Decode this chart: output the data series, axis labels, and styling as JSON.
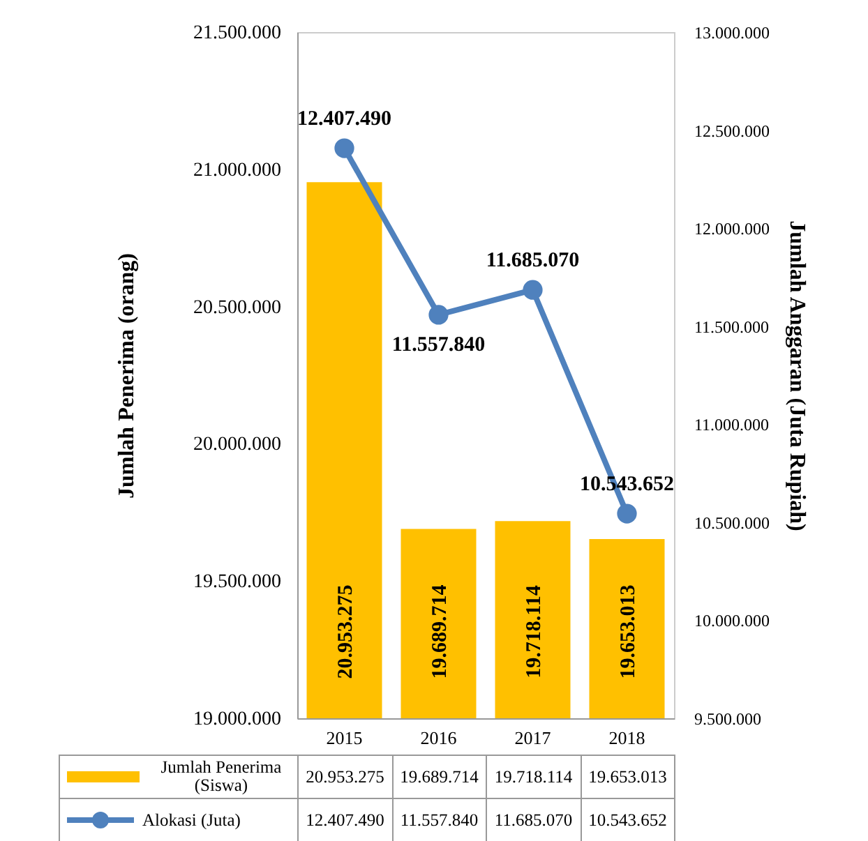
{
  "chart_data": {
    "type": "bar",
    "ylabel": "Jumlah Penerima (orang)",
    "y2label": "Jumlah Anggaran (Juta Rupiah)",
    "categories": [
      "2015",
      "2016",
      "2017",
      "2018"
    ],
    "series": [
      {
        "name": "Jumlah Penerima (Siswa)",
        "color": "#ffc000",
        "values": [
          20953275,
          19689714,
          19718114,
          19653013
        ],
        "value_labels": [
          "20.953.275",
          "19.689.714",
          "19.718.114",
          "19.653.013"
        ]
      },
      {
        "name": "Alokasi (Juta)",
        "type": "line",
        "axis": "y2",
        "color": "#4f81bd",
        "marker": "circle",
        "values": [
          12407490,
          11557840,
          11685070,
          10543652
        ],
        "value_labels": [
          "12.407.490",
          "11.557.840",
          "11.685.070",
          "10.543.652"
        ]
      }
    ],
    "ylim": [
      19000000,
      21500000
    ],
    "yticks": [
      {
        "value": 19000000,
        "label": "19.000.000"
      },
      {
        "value": 19500000,
        "label": "19.500.000"
      },
      {
        "value": 20000000,
        "label": "20.000.000"
      },
      {
        "value": 20500000,
        "label": "20.500.000"
      },
      {
        "value": 21000000,
        "label": "21.000.000"
      },
      {
        "value": 21500000,
        "label": "21.500.000"
      }
    ],
    "y2lim": [
      9500000,
      13000000
    ],
    "y2ticks": [
      {
        "value": 9500000,
        "label": "9.500.000"
      },
      {
        "value": 10000000,
        "label": "10.000.000"
      },
      {
        "value": 10500000,
        "label": "10.500.000"
      },
      {
        "value": 11000000,
        "label": "11.000.000"
      },
      {
        "value": 11500000,
        "label": "11.500.000"
      },
      {
        "value": 12000000,
        "label": "12.000.000"
      },
      {
        "value": 12500000,
        "label": "12.500.000"
      },
      {
        "value": 13000000,
        "label": "13.000.000"
      }
    ],
    "legend": "bottom"
  }
}
